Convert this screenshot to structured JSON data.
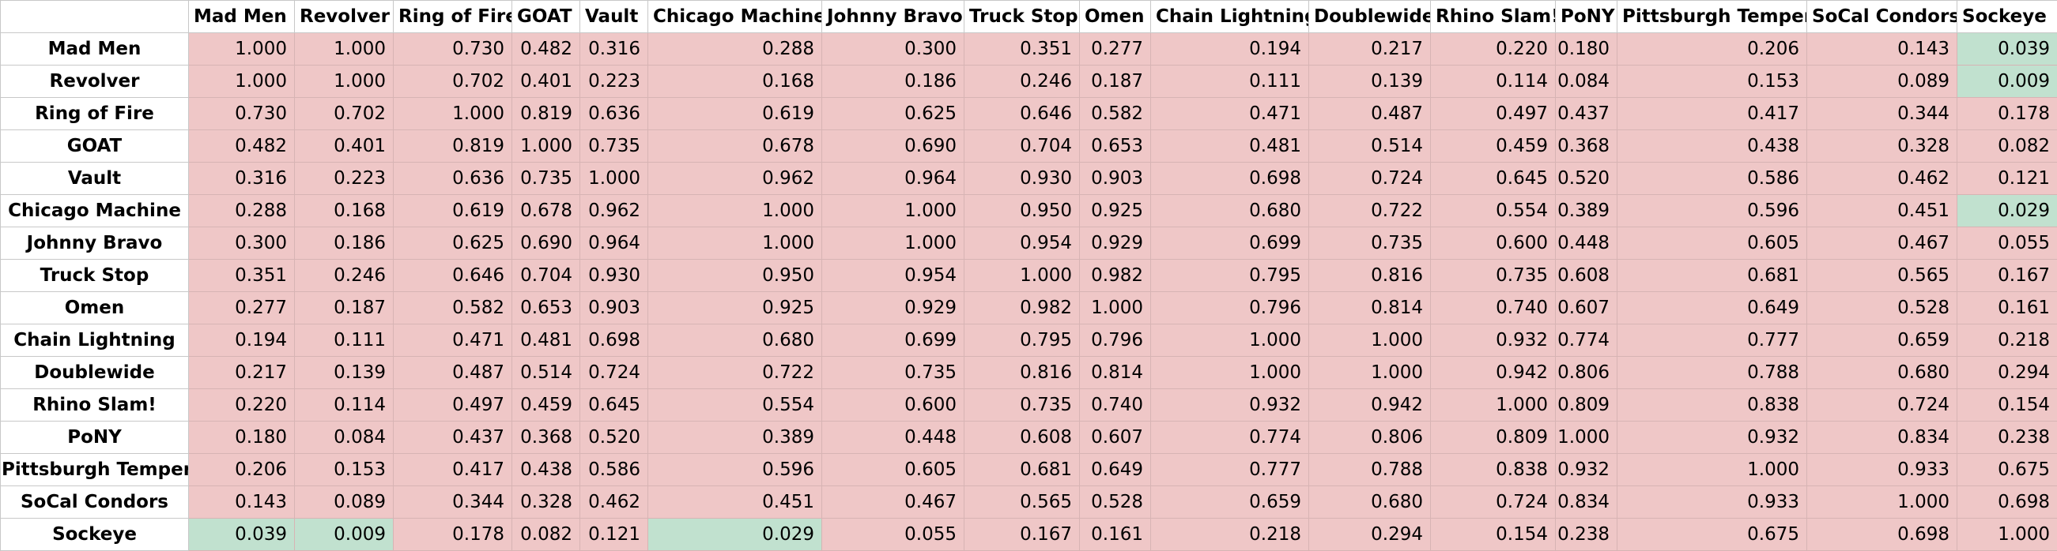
{
  "colors": {
    "high": "#efc7c7",
    "low": "#c1e1cf",
    "grid": "#d7b4b4"
  },
  "threshold": 0.05,
  "columns": [
    "Mad Men",
    "Revolver",
    "Ring of Fire",
    "GOAT",
    "Vault",
    "Chicago Machine",
    "Johnny Bravo",
    "Truck Stop",
    "Omen",
    "Chain Lightning",
    "Doublewide",
    "Rhino Slam!",
    "PoNY",
    "Pittsburgh Temper",
    "SoCal Condors",
    "Sockeye"
  ],
  "rows": [
    {
      "label": "Mad Men",
      "values": [
        "1.000",
        "1.000",
        "0.730",
        "0.482",
        "0.316",
        "0.288",
        "0.300",
        "0.351",
        "0.277",
        "0.194",
        "0.217",
        "0.220",
        "0.180",
        "0.206",
        "0.143",
        "0.039"
      ]
    },
    {
      "label": "Revolver",
      "values": [
        "1.000",
        "1.000",
        "0.702",
        "0.401",
        "0.223",
        "0.168",
        "0.186",
        "0.246",
        "0.187",
        "0.111",
        "0.139",
        "0.114",
        "0.084",
        "0.153",
        "0.089",
        "0.009"
      ]
    },
    {
      "label": "Ring of Fire",
      "values": [
        "0.730",
        "0.702",
        "1.000",
        "0.819",
        "0.636",
        "0.619",
        "0.625",
        "0.646",
        "0.582",
        "0.471",
        "0.487",
        "0.497",
        "0.437",
        "0.417",
        "0.344",
        "0.178"
      ]
    },
    {
      "label": "GOAT",
      "values": [
        "0.482",
        "0.401",
        "0.819",
        "1.000",
        "0.735",
        "0.678",
        "0.690",
        "0.704",
        "0.653",
        "0.481",
        "0.514",
        "0.459",
        "0.368",
        "0.438",
        "0.328",
        "0.082"
      ]
    },
    {
      "label": "Vault",
      "values": [
        "0.316",
        "0.223",
        "0.636",
        "0.735",
        "1.000",
        "0.962",
        "0.964",
        "0.930",
        "0.903",
        "0.698",
        "0.724",
        "0.645",
        "0.520",
        "0.586",
        "0.462",
        "0.121"
      ]
    },
    {
      "label": "Chicago Machine",
      "values": [
        "0.288",
        "0.168",
        "0.619",
        "0.678",
        "0.962",
        "1.000",
        "1.000",
        "0.950",
        "0.925",
        "0.680",
        "0.722",
        "0.554",
        "0.389",
        "0.596",
        "0.451",
        "0.029"
      ]
    },
    {
      "label": "Johnny Bravo",
      "values": [
        "0.300",
        "0.186",
        "0.625",
        "0.690",
        "0.964",
        "1.000",
        "1.000",
        "0.954",
        "0.929",
        "0.699",
        "0.735",
        "0.600",
        "0.448",
        "0.605",
        "0.467",
        "0.055"
      ]
    },
    {
      "label": "Truck Stop",
      "values": [
        "0.351",
        "0.246",
        "0.646",
        "0.704",
        "0.930",
        "0.950",
        "0.954",
        "1.000",
        "0.982",
        "0.795",
        "0.816",
        "0.735",
        "0.608",
        "0.681",
        "0.565",
        "0.167"
      ]
    },
    {
      "label": "Omen",
      "values": [
        "0.277",
        "0.187",
        "0.582",
        "0.653",
        "0.903",
        "0.925",
        "0.929",
        "0.982",
        "1.000",
        "0.796",
        "0.814",
        "0.740",
        "0.607",
        "0.649",
        "0.528",
        "0.161"
      ]
    },
    {
      "label": "Chain Lightning",
      "values": [
        "0.194",
        "0.111",
        "0.471",
        "0.481",
        "0.698",
        "0.680",
        "0.699",
        "0.795",
        "0.796",
        "1.000",
        "1.000",
        "0.932",
        "0.774",
        "0.777",
        "0.659",
        "0.218"
      ]
    },
    {
      "label": "Doublewide",
      "values": [
        "0.217",
        "0.139",
        "0.487",
        "0.514",
        "0.724",
        "0.722",
        "0.735",
        "0.816",
        "0.814",
        "1.000",
        "1.000",
        "0.942",
        "0.806",
        "0.788",
        "0.680",
        "0.294"
      ]
    },
    {
      "label": "Rhino Slam!",
      "values": [
        "0.220",
        "0.114",
        "0.497",
        "0.459",
        "0.645",
        "0.554",
        "0.600",
        "0.735",
        "0.740",
        "0.932",
        "0.942",
        "1.000",
        "0.809",
        "0.838",
        "0.724",
        "0.154"
      ]
    },
    {
      "label": "PoNY",
      "values": [
        "0.180",
        "0.084",
        "0.437",
        "0.368",
        "0.520",
        "0.389",
        "0.448",
        "0.608",
        "0.607",
        "0.774",
        "0.806",
        "0.809",
        "1.000",
        "0.932",
        "0.834",
        "0.238"
      ]
    },
    {
      "label": "Pittsburgh Temper",
      "values": [
        "0.206",
        "0.153",
        "0.417",
        "0.438",
        "0.586",
        "0.596",
        "0.605",
        "0.681",
        "0.649",
        "0.777",
        "0.788",
        "0.838",
        "0.932",
        "1.000",
        "0.933",
        "0.675"
      ]
    },
    {
      "label": "SoCal Condors",
      "values": [
        "0.143",
        "0.089",
        "0.344",
        "0.328",
        "0.462",
        "0.451",
        "0.467",
        "0.565",
        "0.528",
        "0.659",
        "0.680",
        "0.724",
        "0.834",
        "0.933",
        "1.000",
        "0.698"
      ]
    },
    {
      "label": "Sockeye",
      "values": [
        "0.039",
        "0.009",
        "0.178",
        "0.082",
        "0.121",
        "0.029",
        "0.055",
        "0.167",
        "0.161",
        "0.218",
        "0.294",
        "0.154",
        "0.238",
        "0.675",
        "0.698",
        "1.000"
      ]
    }
  ]
}
